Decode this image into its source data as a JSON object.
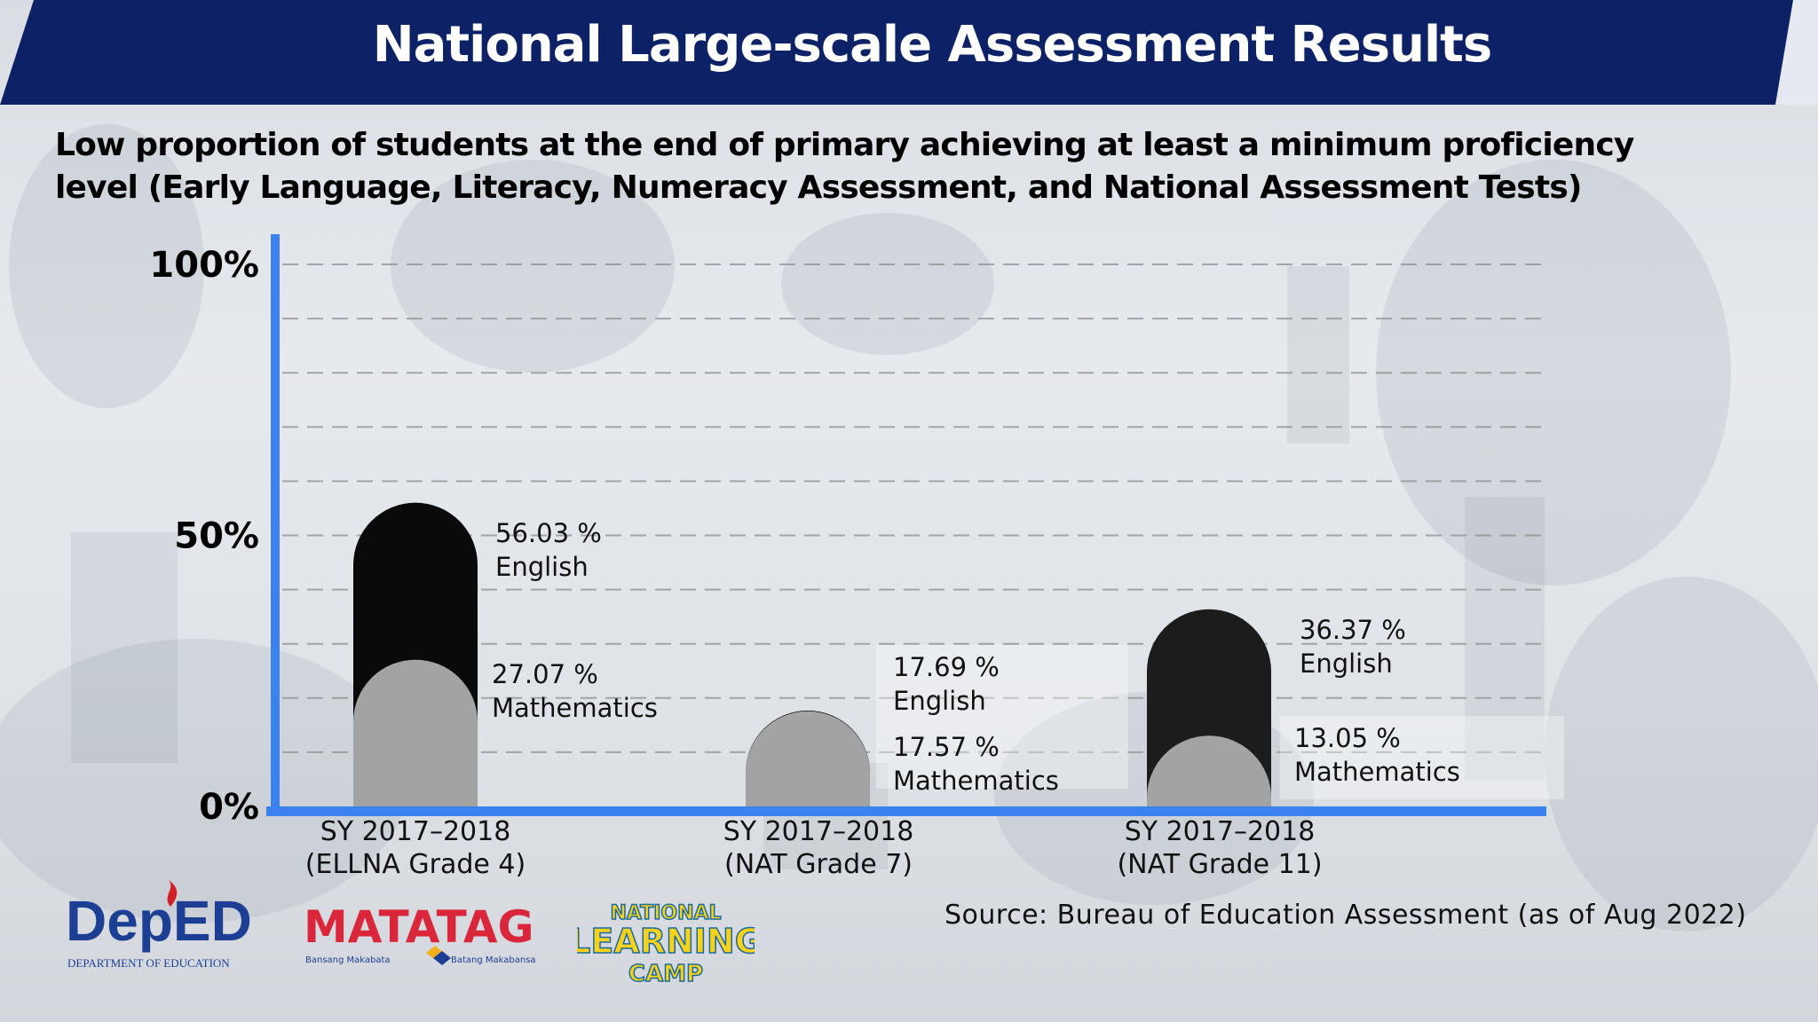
{
  "header": {
    "title": "National Large-scale Assessment Results"
  },
  "subtitle": {
    "line1": "Low proportion of students at the end of primary achieving at least a minimum proficiency",
    "line2": "level (Early Language, Literacy, Numeracy Assessment, and National Assessment Tests)"
  },
  "source": "Source: Bureau of Education Assessment (as of Aug 2022)",
  "logos": {
    "deped": {
      "main": "DepED",
      "sub": "DEPARTMENT OF EDUCATION"
    },
    "matatag": {
      "main": "MATATAG",
      "sub_left": "Bansang Makabata",
      "sub_right": "Batang Makabansa"
    },
    "learning_camp": {
      "line1": "NATIONAL",
      "line2": "LEARNING",
      "line3": "CAMP"
    }
  },
  "colors": {
    "header_navy": "#0d2266",
    "axis_blue": "#3c82ef",
    "english_bar": "#0a0a0a",
    "math_bar": "#a3a3a3",
    "deped_blue": "#1c3f94",
    "deped_red": "#d11f26",
    "matatag_red": "#d9263a",
    "camp_yellow": "#f6d21c"
  },
  "chart_data": {
    "type": "bar",
    "title": "Low proportion of students at the end of primary achieving at least a minimum proficiency level (Early Language, Literacy, Numeracy Assessment, and National Assessment Tests)",
    "categories": [
      [
        "SY 2017–2018",
        "(ELLNA Grade 4)"
      ],
      [
        "SY 2017–2018",
        "(NAT Grade 7)"
      ],
      [
        "SY 2017–2018",
        "(NAT Grade 11)"
      ]
    ],
    "series": [
      {
        "name": "English",
        "values": [
          56.03,
          17.69,
          36.37
        ]
      },
      {
        "name": "Mathematics",
        "values": [
          27.07,
          17.57,
          13.05
        ]
      }
    ],
    "data_labels": [
      {
        "english": "56.03 %",
        "math": "27.07 %"
      },
      {
        "english": "17.69 %",
        "math": "17.57 %"
      },
      {
        "english": "36.37 %",
        "math": "13.05 %"
      }
    ],
    "y_ticks": [
      "0%",
      "50%",
      "100%"
    ],
    "ylim": [
      0,
      100
    ],
    "grid": true,
    "bars_overlapping": true,
    "bar_cap_style": "rounded"
  }
}
